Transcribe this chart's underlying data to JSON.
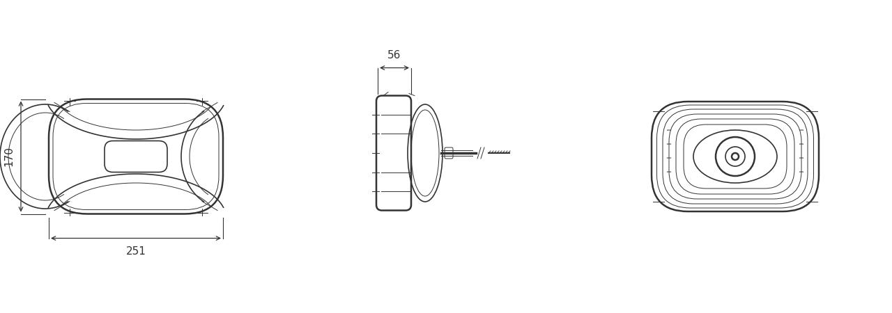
{
  "bg_color": "#ffffff",
  "line_color": "#333333",
  "dim_color": "#444444",
  "lw": 1.2,
  "lw_thick": 1.8,
  "lw_thin": 0.7,
  "fig_w": 12.8,
  "fig_h": 4.5,
  "dim_56_text": "56",
  "dim_170_text": "170",
  "dim_251_text": "251"
}
